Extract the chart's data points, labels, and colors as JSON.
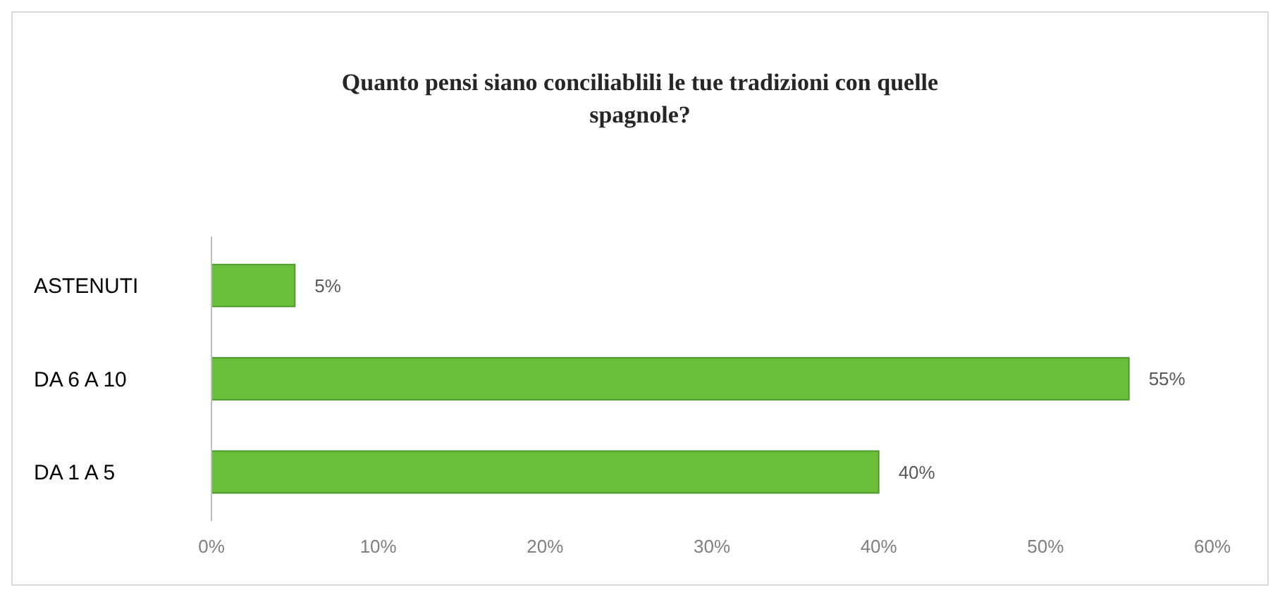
{
  "chart_data": {
    "type": "bar",
    "orientation": "horizontal",
    "title": "Quanto pensi siano conciliablili le tue tradizioni con quelle spagnole?",
    "categories": [
      "ASTENUTI",
      "DA 6 A 10",
      "DA 1 A 5"
    ],
    "values": [
      5,
      55,
      40
    ],
    "value_labels": [
      "5%",
      "55%",
      "40%"
    ],
    "color": "#6abf3a",
    "xlim": [
      0,
      60
    ],
    "xticks": [
      {
        "value": 0,
        "label": "0%"
      },
      {
        "value": 10,
        "label": "10%"
      },
      {
        "value": 20,
        "label": "20%"
      },
      {
        "value": 30,
        "label": "30%"
      },
      {
        "value": 40,
        "label": "40%"
      },
      {
        "value": 50,
        "label": "50%"
      },
      {
        "value": 60,
        "label": "60%"
      }
    ]
  }
}
